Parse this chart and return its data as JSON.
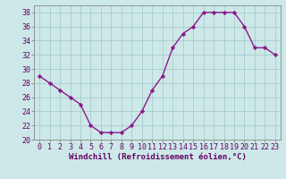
{
  "x": [
    0,
    1,
    2,
    3,
    4,
    5,
    6,
    7,
    8,
    9,
    10,
    11,
    12,
    13,
    14,
    15,
    16,
    17,
    18,
    19,
    20,
    21,
    22,
    23
  ],
  "y": [
    29,
    28,
    27,
    26,
    25,
    22,
    21,
    21,
    21,
    22,
    24,
    27,
    29,
    33,
    35,
    36,
    38,
    38,
    38,
    38,
    36,
    33,
    33,
    32
  ],
  "line_color": "#8b1a8b",
  "marker": "D",
  "marker_size": 2.2,
  "bg_color": "#cce8e8",
  "grid_color": "#aacccc",
  "xlabel": "Windchill (Refroidissement éolien,°C)",
  "xlabel_fontsize": 6.5,
  "xlim": [
    -0.5,
    23.5
  ],
  "ylim": [
    20,
    39
  ],
  "yticks": [
    20,
    22,
    24,
    26,
    28,
    30,
    32,
    34,
    36,
    38
  ],
  "xticks": [
    0,
    1,
    2,
    3,
    4,
    5,
    6,
    7,
    8,
    9,
    10,
    11,
    12,
    13,
    14,
    15,
    16,
    17,
    18,
    19,
    20,
    21,
    22,
    23
  ],
  "tick_fontsize": 6.0,
  "line_width": 1.0,
  "spine_color": "#888888"
}
